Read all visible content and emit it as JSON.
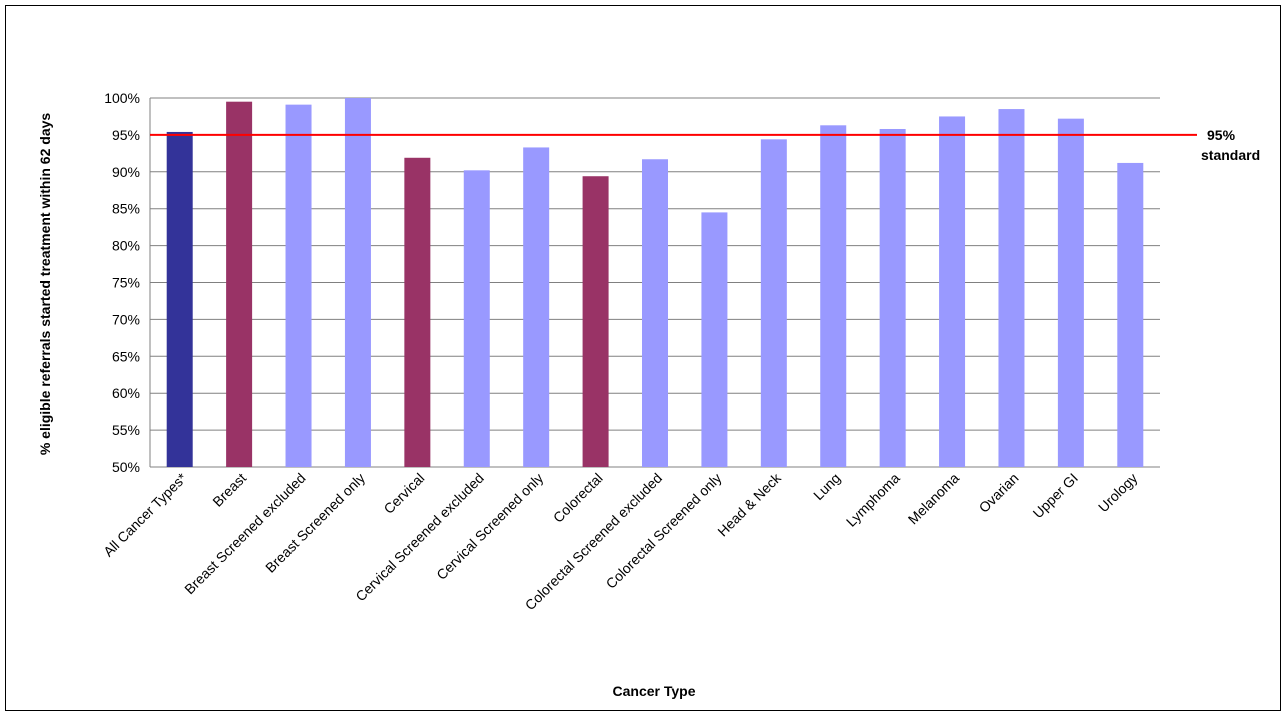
{
  "chart_data": {
    "type": "bar",
    "xlabel": "Cancer Type",
    "ylabel": "% eligible referrals started treatment within 62 days",
    "ylim": [
      50,
      100
    ],
    "yticks": [
      50,
      55,
      60,
      65,
      70,
      75,
      80,
      85,
      90,
      95,
      100
    ],
    "ytick_suffix": "%",
    "grid": true,
    "categories": [
      "All Cancer Types*",
      "Breast",
      "Breast Screened excluded",
      "Breast Screened only",
      "Cervical",
      "Cervical Screened excluded",
      "Cervical Screened only",
      "Colorectal",
      "Colorectal Screened excluded",
      "Colorectal Screened only",
      "Head & Neck",
      "Lung",
      "Lymphoma",
      "Melanoma",
      "Ovarian",
      "Upper GI",
      "Urology"
    ],
    "values": [
      95.4,
      99.5,
      99.1,
      100.0,
      91.9,
      90.2,
      93.3,
      89.4,
      91.7,
      84.5,
      94.4,
      96.3,
      95.8,
      97.5,
      98.5,
      97.2,
      91.2
    ],
    "bar_colors": [
      "#333399",
      "#993366",
      "#9999ff",
      "#9999ff",
      "#993366",
      "#9999ff",
      "#9999ff",
      "#993366",
      "#9999ff",
      "#9999ff",
      "#9999ff",
      "#9999ff",
      "#9999ff",
      "#9999ff",
      "#9999ff",
      "#9999ff",
      "#9999ff"
    ],
    "reference_line": {
      "value": 95,
      "label_line1": "95%",
      "label_line2": "standard",
      "color": "#ff0000"
    }
  }
}
